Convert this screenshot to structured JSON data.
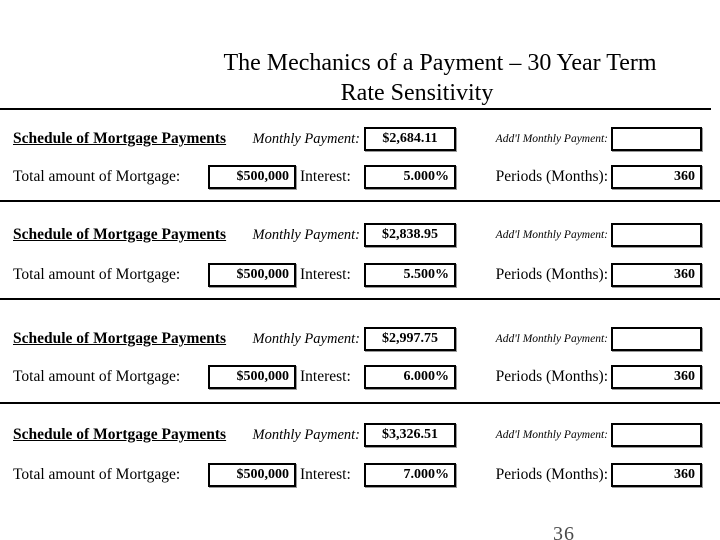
{
  "title": {
    "line1": "The Mechanics of a Payment – 30 Year Term",
    "line2": "Rate Sensitivity"
  },
  "page_number": "36",
  "labels": {
    "schedule_header": "Schedule of Mortgage Payments",
    "monthly_payment": "Monthly Payment:",
    "addl_monthly_payment": "Add'l Monthly Payment:",
    "total_mortgage": "Total amount of Mortgage:",
    "interest": "Interest:",
    "periods": "Periods (Months):"
  },
  "sections": [
    {
      "monthly_payment": "$2,684.11",
      "addl_monthly_payment": "",
      "total_mortgage": "$500,000",
      "interest": "5.000%",
      "periods": "360"
    },
    {
      "monthly_payment": "$2,838.95",
      "addl_monthly_payment": "",
      "total_mortgage": "$500,000",
      "interest": "5.500%",
      "periods": "360"
    },
    {
      "monthly_payment": "$2,997.75",
      "addl_monthly_payment": "",
      "total_mortgage": "$500,000",
      "interest": "6.000%",
      "periods": "360"
    },
    {
      "monthly_payment": "$3,326.51",
      "addl_monthly_payment": "",
      "total_mortgage": "$500,000",
      "interest": "7.000%",
      "periods": "360"
    }
  ]
}
